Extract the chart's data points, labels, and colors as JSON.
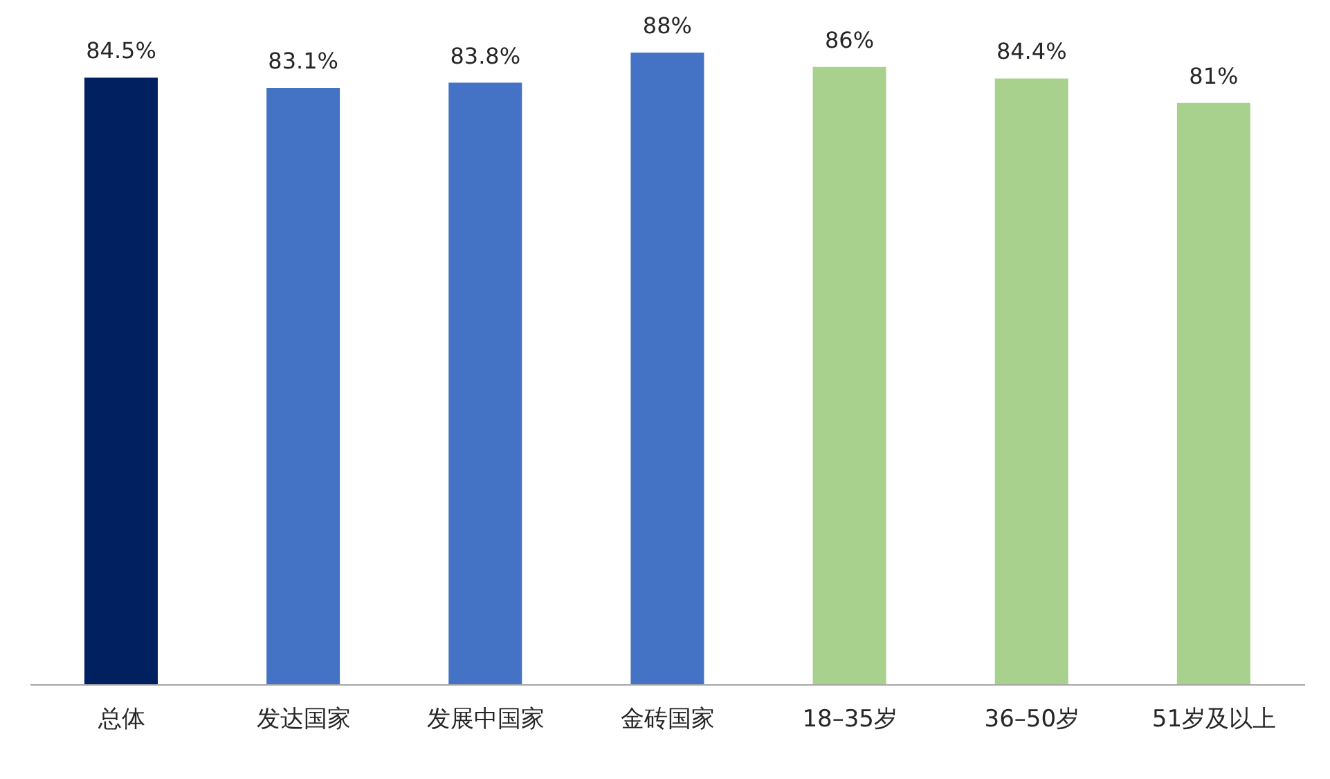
{
  "chart_data": {
    "type": "bar",
    "categories": [
      "总体",
      "发达国家",
      "发展中国家",
      "金砖国家",
      "18–35岁",
      "36–50岁",
      "51岁及以上"
    ],
    "values": [
      84.5,
      83.1,
      83.8,
      88,
      86,
      84.4,
      81
    ],
    "colors": [
      "#002060",
      "#4472c4",
      "#4472c4",
      "#4472c4",
      "#a9d18e",
      "#a9d18e",
      "#a9d18e"
    ],
    "value_labels": [
      "84.5%",
      "83.1%",
      "83.8%",
      "88%",
      "86%",
      "84.4%",
      "81%"
    ],
    "tick_labels": "x",
    "grid": false
  }
}
